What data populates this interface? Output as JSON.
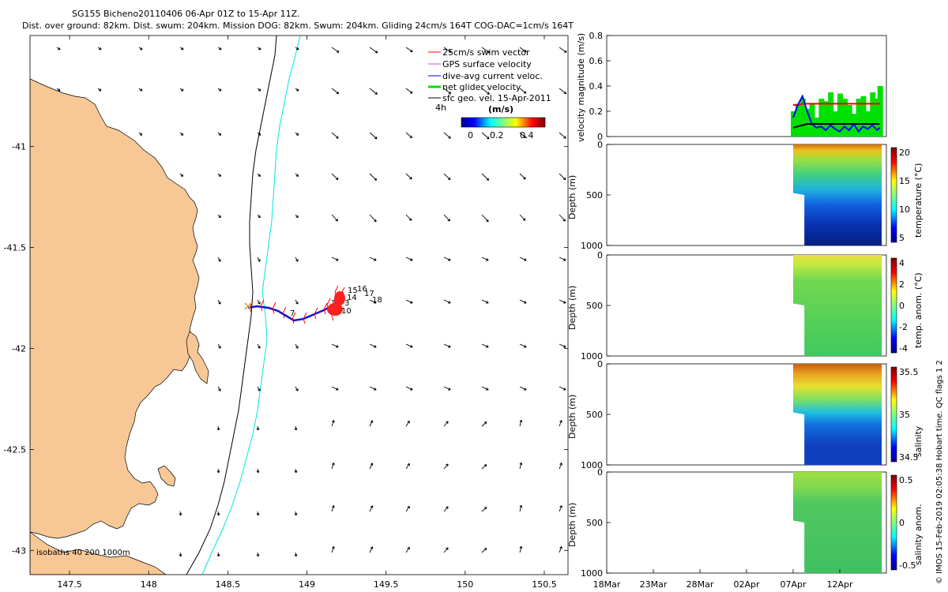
{
  "header": {
    "line1": "SG155 Bicheno20110406 06-Apr 01Z to 15-Apr 11Z.",
    "line2": "Dist. over ground: 82km. Dist. swum: 204km. Mission DOG: 82km. Swum: 204km. Gliding 24cm/s 164T COG-DAC=1cm/s 164T"
  },
  "map": {
    "lon_ticks": [
      "147.5",
      "148",
      "148.5",
      "149",
      "149.5",
      "150",
      "150.5"
    ],
    "lat_ticks": [
      "-41",
      "-41.5",
      "-42",
      "-42.5",
      "-43"
    ],
    "xlim": [
      147.25,
      150.65
    ],
    "ylim": [
      -43.12,
      -40.45
    ],
    "land_color": "#F7C896",
    "isobath_200_color": "#000000",
    "isobath_1000_color": "#00E5E5",
    "isobath_label": "isobaths 40  200  1000m",
    "track_color": "#1010D0",
    "swim_vector_color": "#FF0000",
    "dive_labels": [
      "15",
      "16",
      "17",
      "14",
      "18",
      "3",
      "10",
      "7"
    ],
    "legend": [
      {
        "label": "25cm/s swim vector",
        "color": "#FF0000"
      },
      {
        "label": "GPS surface velocity",
        "color": "#E040E0"
      },
      {
        "label": "dive-avg current veloc.",
        "color": "#0000FF"
      },
      {
        "label": "net glider velocity",
        "color": "#00E000"
      },
      {
        "label": "sfc geo. vel. 15-Apr-2011",
        "color": "#000000"
      }
    ],
    "interval_label": "4h",
    "colorbar": {
      "title": "(m/s)",
      "ticks": [
        "0",
        "0.2",
        "0.4"
      ]
    }
  },
  "chart_data": [
    {
      "type": "line",
      "ylabel": "velocity magnitude (m/s)",
      "ylim": [
        0,
        0.8
      ],
      "yticks": [
        "0",
        "0.2",
        "0.4",
        "0.6",
        "0.8"
      ],
      "x_days": [
        20,
        20.5,
        21,
        21.5,
        22,
        22.5,
        23,
        23.5,
        24,
        24.5,
        25,
        25.5,
        26,
        26.5,
        27,
        27.5,
        28,
        28.5,
        29,
        29.3
      ],
      "series": [
        {
          "color": "#FF0000",
          "values": [
            0.25,
            0.25,
            0.26,
            0.26,
            0.26,
            0.26,
            0.26,
            0.26,
            0.26,
            0.26,
            0.26,
            0.26,
            0.26,
            0.26,
            0.26,
            0.26,
            0.26,
            0.26,
            0.26,
            0.26
          ]
        },
        {
          "color": "#00E000",
          "values": [
            0.2,
            0.26,
            0.3,
            0.22,
            0.26,
            0.15,
            0.3,
            0.28,
            0.35,
            0.2,
            0.34,
            0.3,
            0.25,
            0.18,
            0.3,
            0.32,
            0.2,
            0.35,
            0.3,
            0.4
          ]
        },
        {
          "color": "#0000FF",
          "values": [
            0.15,
            0.25,
            0.32,
            0.2,
            0.1,
            0.07,
            0.08,
            0.05,
            0.09,
            0.06,
            0.04,
            0.08,
            0.05,
            0.1,
            0.04,
            0.08,
            0.06,
            0.09,
            0.05,
            0.07
          ]
        },
        {
          "color": "#000000",
          "values": [
            0.07,
            0.08,
            0.09,
            0.1,
            0.1,
            0.1,
            0.1,
            0.1,
            0.1,
            0.1,
            0.1,
            0.1,
            0.1,
            0.1,
            0.1,
            0.1,
            0.1,
            0.1,
            0.1,
            0.1
          ]
        }
      ]
    },
    {
      "type": "heatmap",
      "ylabel": "Depth (m)",
      "cblabel": "temperature (°C)",
      "cbticks": [
        "5",
        "10",
        "15",
        "20"
      ],
      "ylim": [
        1000,
        0
      ],
      "yticks": [
        "0",
        "500",
        "1000"
      ]
    },
    {
      "type": "heatmap",
      "ylabel": "Depth (m)",
      "cblabel": "temp. anom. (°C)",
      "cbticks": [
        "-4",
        "-2",
        "0",
        "2",
        "4"
      ],
      "ylim": [
        1000,
        0
      ],
      "yticks": [
        "0",
        "500",
        "1000"
      ]
    },
    {
      "type": "heatmap",
      "ylabel": "Depth (m)",
      "cblabel": "salinity",
      "cbticks": [
        "34.5",
        "35",
        "35.5"
      ],
      "ylim": [
        1000,
        0
      ],
      "yticks": [
        "0",
        "500",
        "1000"
      ]
    },
    {
      "type": "heatmap",
      "ylabel": "Depth (m)",
      "cblabel": "salinity anom.",
      "cbticks": [
        "-0.5",
        "0",
        "0.5"
      ],
      "ylim": [
        1000,
        0
      ],
      "yticks": [
        "0",
        "500",
        "1000"
      ]
    }
  ],
  "time_axis": {
    "ticks": [
      "18Mar",
      "23Mar",
      "28Mar",
      "02Apr",
      "07Apr",
      "12Apr"
    ]
  },
  "credit": "© IMOS 15-Feb-2019 02:05:38 Hobart time. QC flags 1  2"
}
